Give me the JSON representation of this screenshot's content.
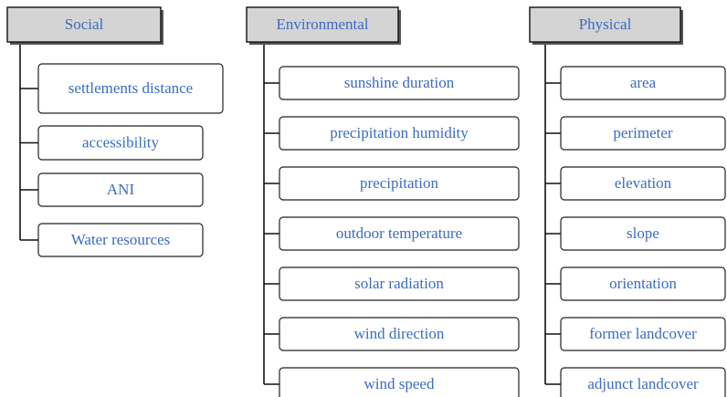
{
  "columns": [
    {
      "title": "Social",
      "items": [
        "settlements distance",
        "accessibility",
        "ANI",
        "Water resources"
      ]
    },
    {
      "title": "Environmental",
      "items": [
        "sunshine duration",
        "precipitation humidity",
        "precipitation",
        "outdoor temperature",
        "solar radiation",
        "wind direction",
        "wind speed"
      ]
    },
    {
      "title": "Physical",
      "items": [
        "area",
        "perimeter",
        "elevation",
        "slope",
        "orientation",
        "former landcover",
        "adjunct landcover"
      ]
    }
  ]
}
